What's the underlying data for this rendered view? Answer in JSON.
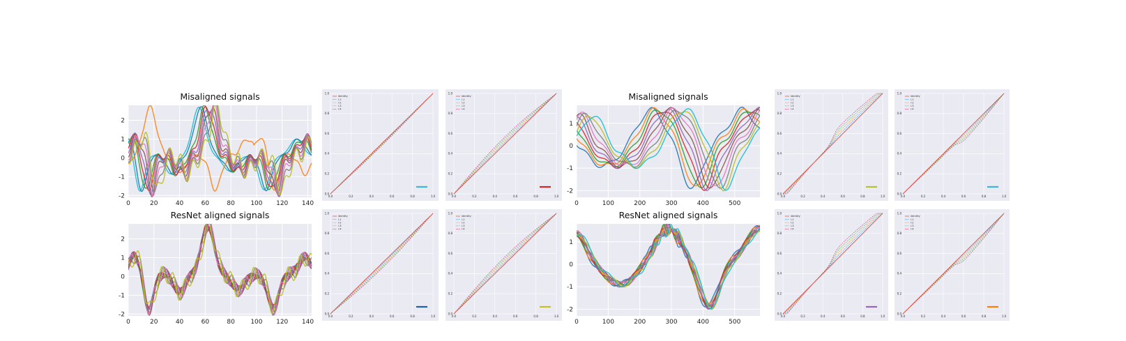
{
  "chart_data": [
    {
      "type": "line",
      "title": "Misaligned signals",
      "group": "left",
      "variant": "misaligned",
      "xlim": [
        0,
        143
      ],
      "ylim": [
        -2.1,
        2.8
      ],
      "xticks": [
        0,
        20,
        40,
        60,
        80,
        100,
        120,
        140
      ],
      "yticks": [
        -2,
        -1,
        0,
        1,
        2
      ]
    },
    {
      "type": "line",
      "title": "ResNet aligned signals",
      "group": "left",
      "variant": "aligned",
      "xlim": [
        0,
        143
      ],
      "ylim": [
        -2.1,
        2.8
      ],
      "xticks": [
        0,
        20,
        40,
        60,
        80,
        100,
        120,
        140
      ],
      "yticks": [
        -2,
        -1,
        0,
        1,
        2
      ]
    },
    {
      "type": "line",
      "title": "Misaligned signals",
      "group": "right",
      "variant": "misaligned",
      "xlim": [
        0,
        580
      ],
      "ylim": [
        -2.3,
        1.8
      ],
      "xticks": [
        0,
        100,
        200,
        300,
        400,
        500
      ],
      "yticks": [
        -2,
        -1,
        0,
        1
      ]
    },
    {
      "type": "line",
      "title": "ResNet aligned signals",
      "group": "right",
      "variant": "aligned",
      "xlim": [
        0,
        580
      ],
      "ylim": [
        -2.3,
        1.8
      ],
      "xticks": [
        0,
        100,
        200,
        300,
        400,
        500
      ],
      "yticks": [
        -2,
        -1,
        0,
        1
      ]
    },
    {
      "type": "line",
      "kind": "warp",
      "legend": [
        "identity",
        "l-1",
        "l-2",
        "l-3",
        "l-4"
      ],
      "xticks": [
        0,
        0.2,
        0.4,
        0.6,
        0.8,
        1.0
      ],
      "yticks": [
        0,
        0.2,
        0.4,
        0.6,
        0.8,
        1.0
      ],
      "badge_color": "#3fb6d6",
      "shape": "tiny"
    },
    {
      "type": "line",
      "kind": "warp",
      "legend": [
        "identity",
        "l-1",
        "l-2",
        "l-3",
        "l-4"
      ],
      "xticks": [
        0,
        0.2,
        0.4,
        0.6,
        0.8,
        1.0
      ],
      "yticks": [
        0,
        0.2,
        0.4,
        0.6,
        0.8,
        1.0
      ],
      "badge_color": "#d62728",
      "shape": "bulge"
    },
    {
      "type": "line",
      "kind": "warp",
      "legend": [
        "identity",
        "l-1",
        "l-2",
        "l-3",
        "l-4"
      ],
      "xticks": [
        0,
        0.2,
        0.4,
        0.6,
        0.8,
        1.0
      ],
      "yticks": [
        0,
        0.2,
        0.4,
        0.6,
        0.8,
        1.0
      ],
      "badge_color": "#1f5fb4",
      "shape": "small"
    },
    {
      "type": "line",
      "kind": "warp",
      "legend": [
        "identity",
        "l-1",
        "l-2",
        "l-3",
        "l-4"
      ],
      "xticks": [
        0,
        0.2,
        0.4,
        0.6,
        0.8,
        1.0
      ],
      "yticks": [
        0,
        0.2,
        0.4,
        0.6,
        0.8,
        1.0
      ],
      "badge_color": "#c8c020",
      "shape": "bulge"
    },
    {
      "type": "line",
      "kind": "warp",
      "legend": [
        "identity",
        "l-1",
        "l-2",
        "l-3",
        "l-4"
      ],
      "xticks": [
        0,
        0.2,
        0.4,
        0.6,
        0.8,
        1.0
      ],
      "yticks": [
        0,
        0.2,
        0.4,
        0.6,
        0.8,
        1.0
      ],
      "badge_color": "#b8c030",
      "shape": "kink"
    },
    {
      "type": "line",
      "kind": "warp",
      "legend": [
        "identity",
        "l-1",
        "l-2",
        "l-3",
        "l-4"
      ],
      "xticks": [
        0,
        0.2,
        0.4,
        0.6,
        0.8,
        1.0
      ],
      "yticks": [
        0,
        0.2,
        0.4,
        0.6,
        0.8,
        1.0
      ],
      "badge_color": "#3fb6d6",
      "shape": "kinkbelow"
    },
    {
      "type": "line",
      "kind": "warp",
      "legend": [
        "identity",
        "l-1",
        "l-2",
        "l-3",
        "l-4"
      ],
      "xticks": [
        0,
        0.2,
        0.4,
        0.6,
        0.8,
        1.0
      ],
      "yticks": [
        0,
        0.2,
        0.4,
        0.6,
        0.8,
        1.0
      ],
      "badge_color": "#9467bd",
      "shape": "kink"
    },
    {
      "type": "line",
      "kind": "warp",
      "legend": [
        "identity",
        "l-1",
        "l-2",
        "l-3",
        "l-4"
      ],
      "xticks": [
        0,
        0.2,
        0.4,
        0.6,
        0.8,
        1.0
      ],
      "yticks": [
        0,
        0.2,
        0.4,
        0.6,
        0.8,
        1.0
      ],
      "badge_color": "#ff7f0e",
      "shape": "kinkbelow"
    }
  ]
}
